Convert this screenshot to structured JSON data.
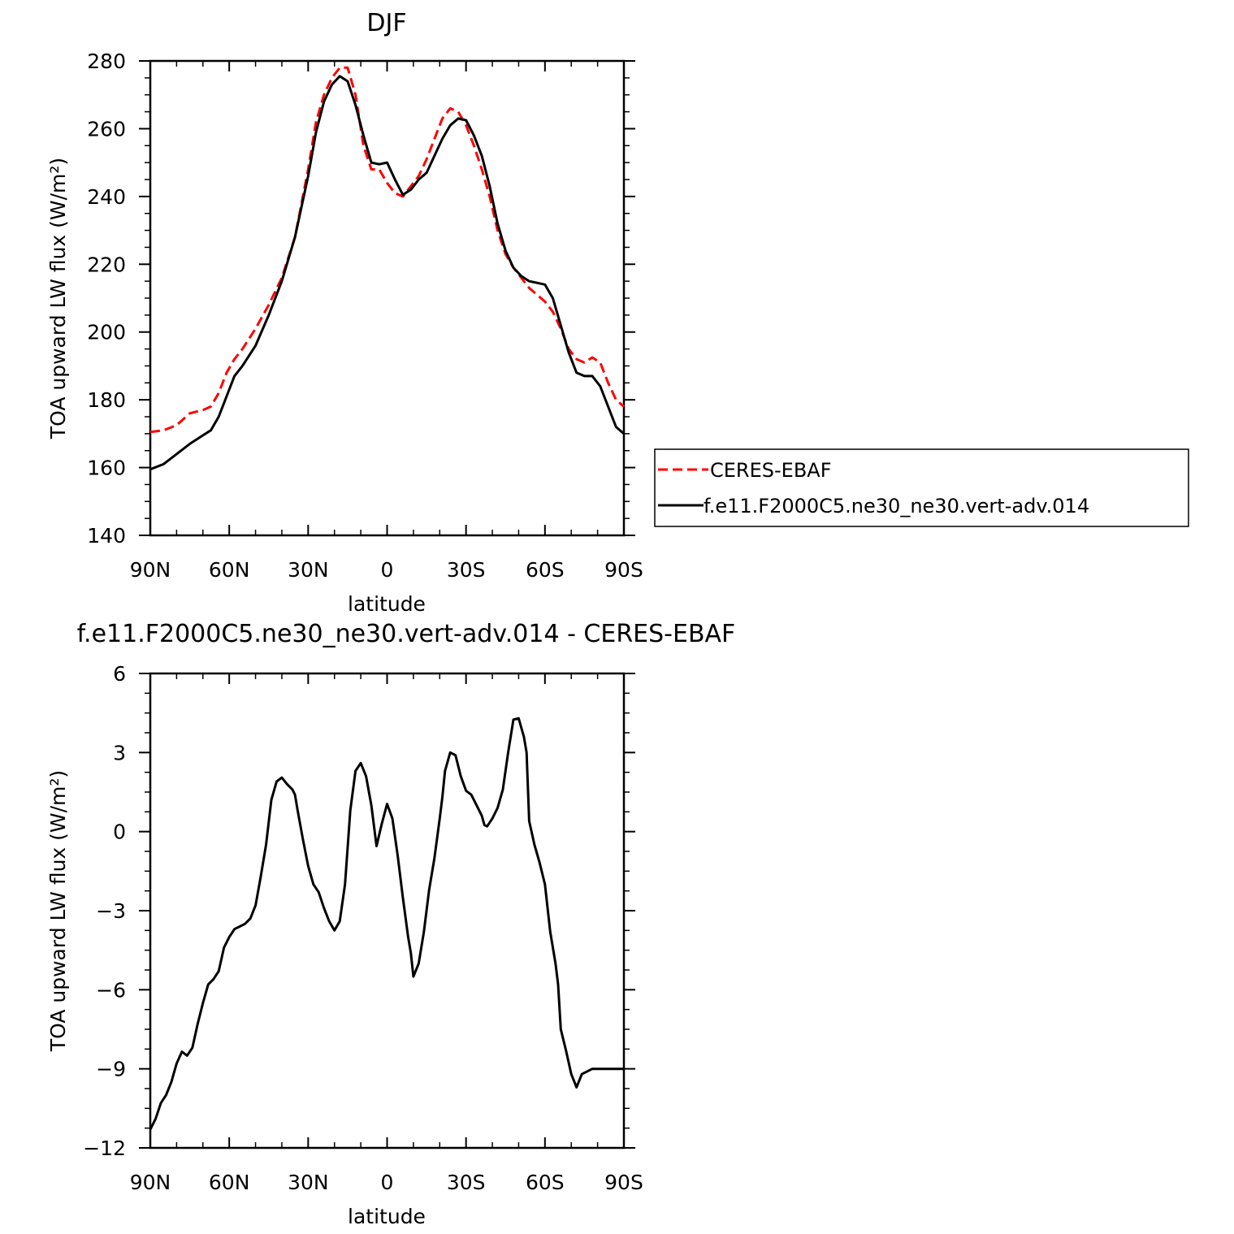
{
  "chart_data": [
    {
      "type": "line",
      "title": "DJF",
      "xlabel": "latitude",
      "ylabel": "TOA upward LW flux (W/m²)",
      "xlim": [
        90,
        -90
      ],
      "ylim": [
        140,
        280
      ],
      "yticks": [
        140,
        160,
        180,
        200,
        220,
        240,
        260,
        280
      ],
      "xticks": [
        90,
        60,
        30,
        0,
        -30,
        -60,
        -90
      ],
      "xticklabels": [
        "90N",
        "60N",
        "30N",
        "0",
        "30S",
        "60S",
        "90S"
      ],
      "grid": false,
      "legend_position": "right-middle",
      "series": [
        {
          "name": "CERES-EBAF",
          "color": "#ff0000",
          "style": "dashed",
          "x": [
            90,
            85,
            80,
            75,
            70,
            67,
            64,
            61,
            58,
            55,
            50,
            45,
            40,
            35,
            30,
            27,
            24,
            21,
            18,
            15,
            12,
            9,
            6,
            3,
            0,
            -3,
            -6,
            -9,
            -12,
            -15,
            -18,
            -21,
            -24,
            -27,
            -30,
            -33,
            -36,
            -39,
            -42,
            -45,
            -48,
            -51,
            -54,
            -57,
            -60,
            -63,
            -66,
            -69,
            -72,
            -75,
            -78,
            -81,
            -84,
            -87,
            -90
          ],
          "y": [
            170.5,
            171,
            172.5,
            176,
            177,
            178,
            182,
            188,
            192,
            195,
            201,
            208,
            216,
            228,
            248,
            262,
            270,
            275,
            278,
            278,
            270,
            255,
            248,
            248,
            244,
            241,
            240,
            243,
            246,
            251,
            257,
            263,
            266,
            265,
            261,
            255,
            248,
            240,
            230,
            223,
            219,
            216,
            213,
            211,
            209,
            206,
            201,
            195,
            192,
            191,
            192.5,
            191,
            185,
            180,
            178
          ]
        },
        {
          "name": "f.e11.F2000C5.ne30_ne30.vert-adv.014",
          "color": "#000000",
          "style": "solid",
          "x": [
            90,
            85,
            80,
            75,
            70,
            67,
            64,
            61,
            58,
            55,
            50,
            45,
            40,
            35,
            30,
            27,
            24,
            21,
            18,
            15,
            12,
            9,
            6,
            3,
            0,
            -3,
            -6,
            -9,
            -12,
            -15,
            -18,
            -21,
            -24,
            -27,
            -30,
            -33,
            -36,
            -39,
            -42,
            -45,
            -48,
            -51,
            -54,
            -57,
            -60,
            -63,
            -66,
            -69,
            -72,
            -75,
            -78,
            -81,
            -84,
            -87,
            -90
          ],
          "y": [
            159.5,
            161,
            164,
            167,
            169.5,
            171,
            175,
            181,
            187,
            190,
            196,
            205,
            215,
            228,
            246,
            259,
            268,
            273,
            275.5,
            274,
            267,
            258,
            250,
            249.5,
            250,
            245,
            240.5,
            242,
            245,
            247,
            252,
            257,
            261,
            263,
            262.5,
            258,
            252,
            243,
            232,
            224,
            219,
            216.5,
            215,
            214.5,
            214,
            210,
            202,
            194,
            188,
            187,
            187,
            184,
            178,
            172,
            170
          ]
        }
      ]
    },
    {
      "type": "line",
      "title": "f.e11.F2000C5.ne30_ne30.vert-adv.014 - CERES-EBAF",
      "xlabel": "latitude",
      "ylabel": "TOA upward LW flux (W/m²)",
      "xlim": [
        90,
        -90
      ],
      "ylim": [
        -12,
        6
      ],
      "yticks": [
        -12,
        -9,
        -6,
        -3,
        0,
        3,
        6
      ],
      "xticks": [
        90,
        60,
        30,
        0,
        -30,
        -60,
        -90
      ],
      "xticklabels": [
        "90N",
        "60N",
        "30N",
        "0",
        "30S",
        "60S",
        "90S"
      ],
      "grid": false,
      "series": [
        {
          "name": "",
          "color": "#000000",
          "style": "solid",
          "x": [
            90,
            88,
            86,
            84,
            82,
            80,
            78,
            76,
            74,
            72,
            70,
            68,
            66,
            64,
            62,
            60,
            58,
            56,
            54,
            52,
            50,
            48,
            46,
            44,
            42,
            40,
            38,
            36,
            35,
            34,
            32,
            30,
            28,
            26,
            24,
            22,
            20,
            18,
            16,
            14,
            12,
            10,
            8,
            6,
            4,
            2,
            0,
            -2,
            -4,
            -6,
            -8,
            -9,
            -10,
            -12,
            -14,
            -16,
            -18,
            -20,
            -21,
            -22,
            -24,
            -26,
            -28,
            -30,
            -32,
            -34,
            -36,
            -37,
            -38,
            -40,
            -42,
            -44,
            -46,
            -48,
            -50,
            -52,
            -53,
            -54,
            -56,
            -58,
            -60,
            -62,
            -64,
            -65,
            -66,
            -68,
            -70,
            -72,
            -74,
            -76,
            -78,
            -80,
            -82,
            -84,
            -86,
            -87,
            -88,
            -89,
            -90
          ],
          "y": [
            -11.3,
            -10.9,
            -10.3,
            -10,
            -9.5,
            -8.8,
            -8.35,
            -8.5,
            -8.2,
            -7.3,
            -6.5,
            -5.8,
            -5.6,
            -5.3,
            -4.4,
            -4,
            -3.7,
            -3.6,
            -3.5,
            -3.3,
            -2.8,
            -1.7,
            -0.5,
            1.2,
            1.9,
            2.05,
            1.8,
            1.6,
            1.4,
            0.8,
            -0.3,
            -1.3,
            -2,
            -2.3,
            -2.9,
            -3.4,
            -3.75,
            -3.4,
            -2,
            0.8,
            2.3,
            2.6,
            2.1,
            1,
            -0.55,
            0.3,
            1.05,
            0.5,
            -0.9,
            -2.5,
            -4,
            -4.6,
            -5.5,
            -5,
            -3.8,
            -2.2,
            -1,
            0.5,
            1.3,
            2.3,
            3,
            2.9,
            2.1,
            1.55,
            1.4,
            1,
            0.6,
            0.25,
            0.2,
            0.5,
            0.9,
            1.6,
            3,
            4.25,
            4.3,
            3.6,
            3,
            0.4,
            -0.5,
            -1.2,
            -2,
            -3.8,
            -5,
            -5.8,
            -7.5,
            -8.3,
            -9.2,
            -9.7,
            -9.2,
            -9.1,
            -9,
            -9,
            -9,
            -9,
            -9,
            -9,
            -9,
            -9,
            -9
          ]
        }
      ]
    }
  ]
}
